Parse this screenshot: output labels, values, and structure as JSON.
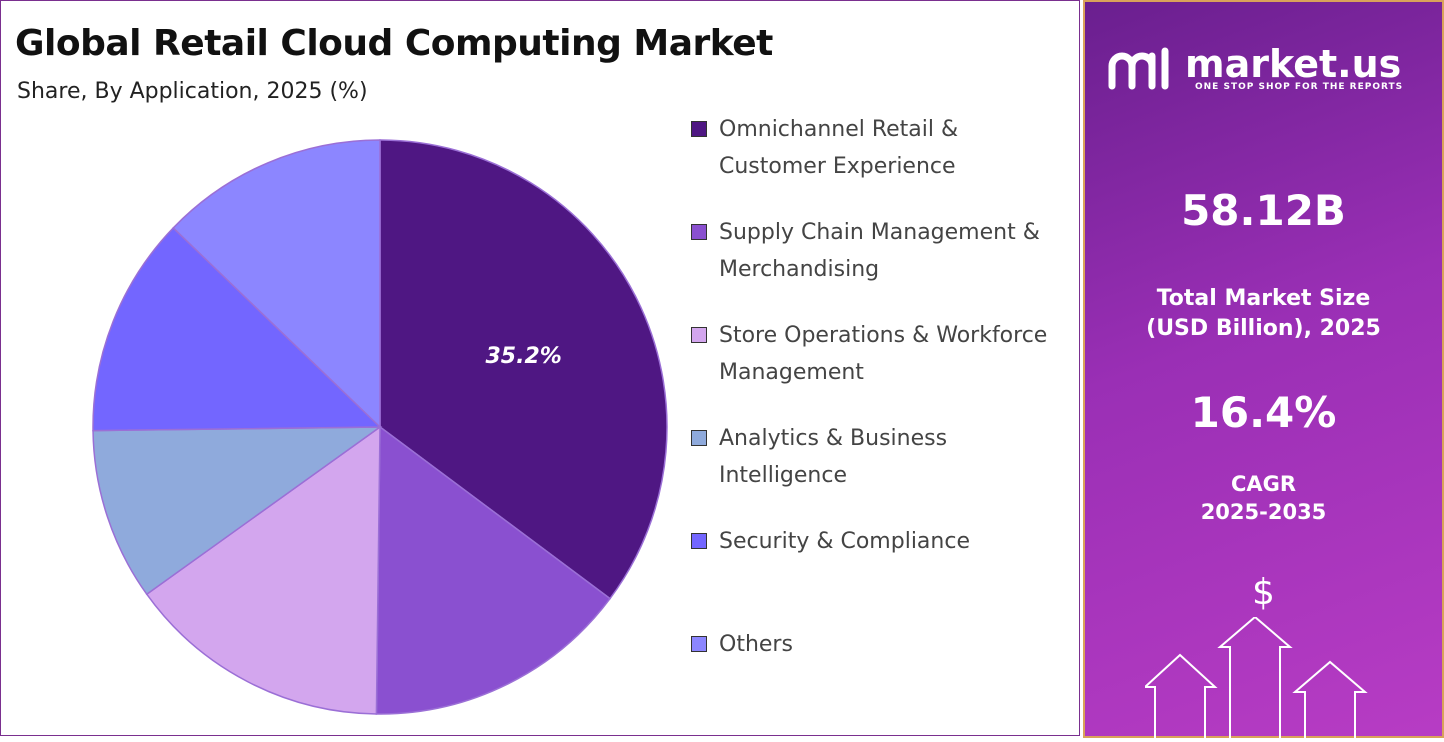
{
  "chart_data": {
    "type": "pie",
    "title": "Global Retail Cloud Computing Market",
    "subtitle": "Share, By Application, 2025 (%)",
    "categories": [
      "Omnichannel Retail & Customer Experience",
      "Supply Chain Management & Merchandising",
      "Store Operations & Workforce Management",
      "Analytics & Business Intelligence",
      "Security & Compliance",
      "Others"
    ],
    "values": [
      35.2,
      15.0,
      14.9,
      9.7,
      12.4,
      12.8
    ],
    "value_labels": [
      "35.2%",
      null,
      null,
      null,
      null,
      null
    ],
    "colors": [
      "#4f1783",
      "#8a50d0",
      "#d3a6ee",
      "#8faadc",
      "#7366ff",
      "#8c86ff"
    ]
  },
  "sidebar": {
    "brand": "market.us",
    "tagline": "ONE STOP SHOP FOR THE REPORTS",
    "market_size": "58.12B",
    "market_size_label": "Total Market Size (USD Billion), 2025",
    "cagr": "16.4%",
    "cagr_label": [
      "CAGR",
      "2025-2035"
    ],
    "currency_symbol": "$"
  }
}
